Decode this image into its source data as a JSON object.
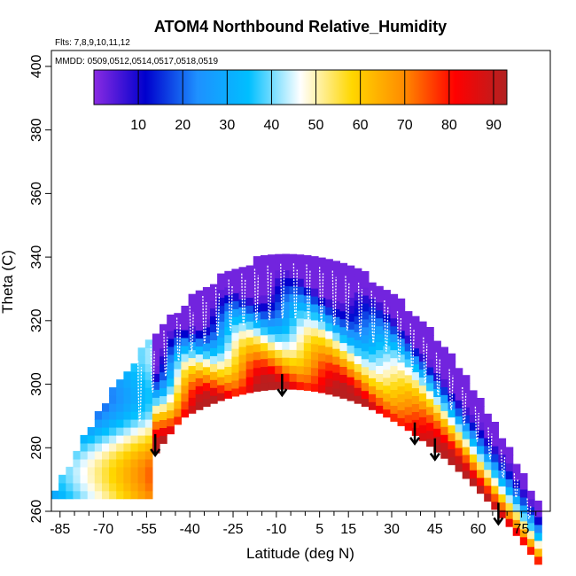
{
  "chart_data": {
    "type": "heatmap",
    "title": "ATOM4 Northbound Relative_Humidity",
    "flights_note": "Flts: 7,8,9,10,11,12",
    "dates_note": "MMDD: 0509,0512,0514,0517,0518,0519",
    "xlabel": "Latitude (deg N)",
    "ylabel": "Theta (C)",
    "xlim": [
      -88,
      85
    ],
    "ylim": [
      260,
      405
    ],
    "x_ticks": [
      -85,
      -70,
      -55,
      -40,
      -25,
      -10,
      5,
      15,
      30,
      45,
      60,
      75
    ],
    "x_minor_ticks": [
      -80,
      -75,
      -65,
      -60,
      -50,
      -45,
      -35,
      -30,
      -20,
      -15,
      -5,
      0,
      10,
      20,
      25,
      35,
      40,
      50,
      55,
      65,
      70,
      80
    ],
    "y_ticks": [
      260,
      280,
      300,
      320,
      340,
      360,
      380,
      400
    ],
    "colorbar": {
      "range": [
        0,
        93
      ],
      "ticks": [
        10,
        20,
        30,
        40,
        50,
        60,
        70,
        80,
        90
      ],
      "colors": [
        "#8a2be2",
        "#0000cd",
        "#1e90ff",
        "#00bfff",
        "#ffffff",
        "#ffd700",
        "#ff8c00",
        "#ff0000",
        "#b22222"
      ]
    },
    "profile_arrows_lat": [
      -52,
      -8,
      38,
      45,
      67
    ],
    "grid": false,
    "legend": "colorbar top"
  }
}
